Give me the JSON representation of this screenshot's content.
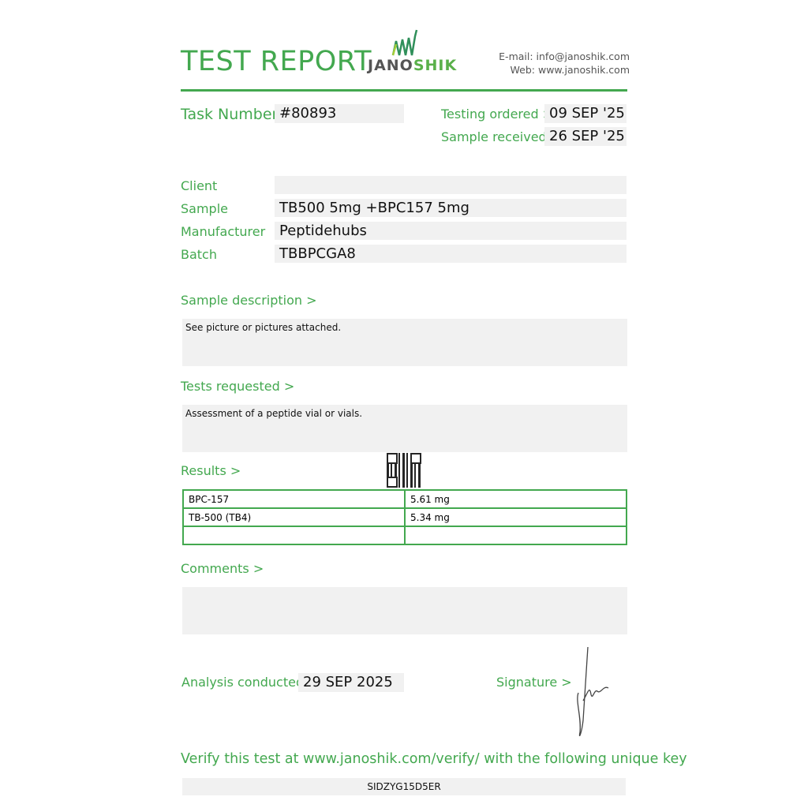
{
  "header": {
    "title": "TEST REPORT",
    "logo_text_a": "JANO",
    "logo_text_b": "SHIK",
    "email": "E-mail: info@janoshik.com",
    "web": "Web: www.janoshik.com",
    "accent_color": "#43a84f"
  },
  "task": {
    "label": "Task Number",
    "value": "#80893",
    "testing_ordered_label": "Testing ordered  >",
    "testing_ordered": "09 SEP '25",
    "sample_received_label": "Sample received >",
    "sample_received": "26 SEP '25"
  },
  "info": {
    "client_label": "Client",
    "client": "",
    "sample_label": "Sample",
    "sample": "TB500 5mg +BPC157 5mg",
    "manufacturer_label": "Manufacturer",
    "manufacturer": "Peptidehubs",
    "batch_label": "Batch",
    "batch": "TBBPCGA8"
  },
  "sample_description": {
    "label": "Sample description >",
    "text": "See picture or pictures attached."
  },
  "tests_requested": {
    "label": "Tests requested >",
    "text": "Assessment of a peptide vial or vials."
  },
  "results": {
    "label": "Results >",
    "rows": [
      {
        "name": "BPC-157",
        "value": "5.61 mg"
      },
      {
        "name": "TB-500 (TB4)",
        "value": "5.34 mg"
      },
      {
        "name": "",
        "value": ""
      }
    ]
  },
  "comments": {
    "label": "Comments >",
    "text": ""
  },
  "analysis": {
    "label": "Analysis conducted >",
    "date": "29 SEP 2025",
    "signature_label": "Signature >"
  },
  "verify": {
    "text": "Verify this test at www.janoshik.com/verify/ with the following unique key",
    "key": "SIDZYG15D5ER"
  }
}
